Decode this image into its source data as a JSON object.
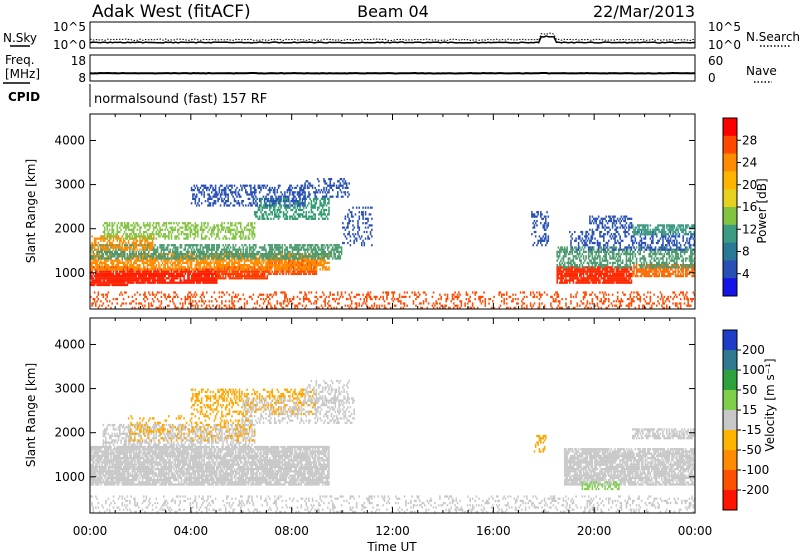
{
  "header": {
    "station": "Adak West (fitACF)",
    "beam": "Beam 04",
    "date": "22/Mar/2013"
  },
  "top_panels": {
    "nsky_label": "N.Sky",
    "nsearch_label": "N.Search",
    "nsky_ticks": [
      "10^5",
      "10^0"
    ],
    "nsearch_ticks": [
      "10^5",
      "10^0"
    ],
    "freq_label_1": "Freq.",
    "freq_label_2": "[MHz]",
    "freq_ticks": [
      "18",
      "8"
    ],
    "nave_label": "Nave",
    "nave_ticks": [
      "60",
      "0"
    ],
    "cpid_label": "CPID",
    "cpid_text": "normalsound (fast) 157 RF"
  },
  "power_colorbar": {
    "label": "Power [dB]",
    "ticks": [
      "28",
      "24",
      "20",
      "16",
      "12",
      "8",
      "4"
    ],
    "colors": [
      "#ff0000",
      "#ff4a00",
      "#ff8c00",
      "#ffb400",
      "#e6d21e",
      "#82c341",
      "#3c9b82",
      "#287896",
      "#2850b4",
      "#1414e6"
    ]
  },
  "velocity_colorbar": {
    "label": "Velocity [m s⁻¹]",
    "ticks": [
      "200",
      "100",
      "50",
      "15",
      "-15",
      "-50",
      "-100",
      "-200"
    ],
    "colors": [
      "#1e3cc8",
      "#2f7a8e",
      "#2ea03c",
      "#7ed04b",
      "#c8c8c8",
      "#ffb400",
      "#ff8c00",
      "#ff5000",
      "#ff1400"
    ]
  },
  "chart_data": [
    {
      "type": "heatmap",
      "name": "power",
      "ylabel": "Slant Range [km]",
      "xlabel": "Time UT",
      "xlim": [
        0,
        24
      ],
      "ylim": [
        180,
        4600
      ],
      "y_ticks": [
        1000,
        2000,
        3000,
        4000
      ],
      "x_ticks": [
        "00:00",
        "04:00",
        "08:00",
        "12:00",
        "16:00",
        "20:00",
        "00:00"
      ],
      "bands": [
        {
          "t0": 0,
          "t1": 1.5,
          "r0": 700,
          "r1": 1150,
          "c": "#ff1e00",
          "d": 0.9
        },
        {
          "t0": 1.5,
          "t1": 5.0,
          "r0": 750,
          "r1": 1100,
          "c": "#ff1e00",
          "d": 0.9
        },
        {
          "t0": 5.0,
          "t1": 7.0,
          "r0": 850,
          "r1": 1150,
          "c": "#ff3c00",
          "d": 0.85
        },
        {
          "t0": 7.0,
          "t1": 9.0,
          "r0": 950,
          "r1": 1300,
          "c": "#ff4a00",
          "d": 0.8
        },
        {
          "t0": 0,
          "t1": 9.5,
          "r0": 1050,
          "r1": 1450,
          "c": "#ff8c00",
          "d": 0.7
        },
        {
          "t0": 0,
          "t1": 10.0,
          "r0": 1300,
          "r1": 1650,
          "c": "#4c9a6e",
          "d": 0.65
        },
        {
          "t0": 0,
          "t1": 2.5,
          "r0": 1500,
          "r1": 1850,
          "c": "#ff8c00",
          "d": 0.55
        },
        {
          "t0": 0.5,
          "t1": 6.5,
          "r0": 1750,
          "r1": 2150,
          "c": "#82c341",
          "d": 0.45
        },
        {
          "t0": 6.5,
          "t1": 9.5,
          "r0": 2200,
          "r1": 2700,
          "c": "#2d9a6e",
          "d": 0.45
        },
        {
          "t0": 4.0,
          "t1": 8.5,
          "r0": 2500,
          "r1": 3000,
          "c": "#2850b4",
          "d": 0.4
        },
        {
          "t0": 8.5,
          "t1": 10.3,
          "r0": 2700,
          "r1": 3150,
          "c": "#2850b4",
          "d": 0.35
        },
        {
          "t0": 10.0,
          "t1": 11.2,
          "r0": 1600,
          "r1": 2500,
          "c": "#2850b4",
          "d": 0.25
        },
        {
          "t0": 18.5,
          "t1": 21.5,
          "r0": 750,
          "r1": 1150,
          "c": "#ff2800",
          "d": 0.85
        },
        {
          "t0": 21.5,
          "t1": 24,
          "r0": 900,
          "r1": 1200,
          "c": "#ff6a00",
          "d": 0.75
        },
        {
          "t0": 18.5,
          "t1": 24,
          "r0": 1100,
          "r1": 1600,
          "c": "#4c9a6e",
          "d": 0.55
        },
        {
          "t0": 19.0,
          "t1": 24,
          "r0": 1500,
          "r1": 1950,
          "c": "#2850b4",
          "d": 0.35
        },
        {
          "t0": 21.5,
          "t1": 24,
          "r0": 1850,
          "r1": 2100,
          "c": "#3c9b82",
          "d": 0.6
        },
        {
          "t0": 19.8,
          "t1": 21.5,
          "r0": 1950,
          "r1": 2300,
          "c": "#2850b4",
          "d": 0.4
        },
        {
          "t0": 17.5,
          "t1": 18.2,
          "r0": 1600,
          "r1": 2400,
          "c": "#2850b4",
          "d": 0.3
        },
        {
          "t0": 0,
          "t1": 24,
          "r0": 180,
          "r1": 550,
          "c": "#ff4a00",
          "d": 0.25
        }
      ]
    },
    {
      "type": "heatmap",
      "name": "velocity",
      "ylabel": "Slant Range [km]",
      "xlabel": "Time UT",
      "xlim": [
        0,
        24
      ],
      "ylim": [
        180,
        4600
      ],
      "y_ticks": [
        1000,
        2000,
        3000,
        4000
      ],
      "x_ticks": [
        "00:00",
        "04:00",
        "08:00",
        "12:00",
        "16:00",
        "20:00",
        "00:00"
      ],
      "bands": [
        {
          "t0": 0,
          "t1": 9.5,
          "r0": 800,
          "r1": 1700,
          "c": "#c8c8c8",
          "d": 0.85
        },
        {
          "t0": 0.5,
          "t1": 6.5,
          "r0": 1700,
          "r1": 2200,
          "c": "#c8c8c8",
          "d": 0.5
        },
        {
          "t0": 1.5,
          "t1": 6.5,
          "r0": 1800,
          "r1": 2400,
          "c": "#ffa500",
          "d": 0.2
        },
        {
          "t0": 4.0,
          "t1": 9.0,
          "r0": 2400,
          "r1": 3000,
          "c": "#ffa500",
          "d": 0.35
        },
        {
          "t0": 6.0,
          "t1": 10.5,
          "r0": 2200,
          "r1": 2800,
          "c": "#c8c8c8",
          "d": 0.35
        },
        {
          "t0": 8.5,
          "t1": 10.3,
          "r0": 2700,
          "r1": 3200,
          "c": "#c8c8c8",
          "d": 0.3
        },
        {
          "t0": 18.8,
          "t1": 24,
          "r0": 800,
          "r1": 1650,
          "c": "#c8c8c8",
          "d": 0.8
        },
        {
          "t0": 19.5,
          "t1": 21.0,
          "r0": 700,
          "r1": 900,
          "c": "#7ed04b",
          "d": 0.4
        },
        {
          "t0": 21.5,
          "t1": 24,
          "r0": 1850,
          "r1": 2100,
          "c": "#c8c8c8",
          "d": 0.55
        },
        {
          "t0": 17.6,
          "t1": 18.1,
          "r0": 1550,
          "r1": 1950,
          "c": "#ffa500",
          "d": 0.4
        },
        {
          "t0": 0,
          "t1": 24,
          "r0": 180,
          "r1": 550,
          "c": "#c8c8c8",
          "d": 0.2
        }
      ]
    }
  ]
}
